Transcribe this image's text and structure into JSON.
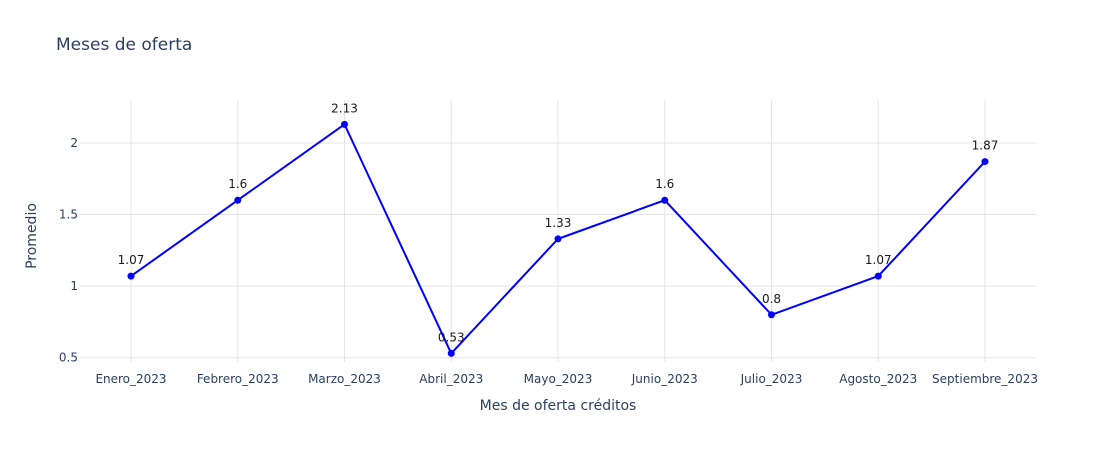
{
  "chart_data": {
    "type": "line",
    "title": "Meses de oferta",
    "xlabel": "Mes de oferta créditos",
    "ylabel": "Promedio",
    "categories": [
      "Enero_2023",
      "Febrero_2023",
      "Marzo_2023",
      "Abril_2023",
      "Mayo_2023",
      "Junio_2023",
      "Julio_2023",
      "Agosto_2023",
      "Septiembre_2023"
    ],
    "series": [
      {
        "values": [
          1.07,
          1.6,
          2.13,
          0.53,
          1.33,
          1.6,
          0.8,
          1.07,
          1.87
        ],
        "labels": [
          "1.07",
          "1.6",
          "2.13",
          "0.53",
          "1.33",
          "1.6",
          "0.8",
          "1.07",
          "1.87"
        ],
        "color": "#0000ff"
      }
    ],
    "ylim": [
      0.47,
      2.3
    ],
    "yticks": [
      0.5,
      1,
      1.5,
      2
    ],
    "ytick_labels": [
      "0.5",
      "1",
      "1.5",
      "2"
    ],
    "grid": true,
    "legend": "none"
  }
}
